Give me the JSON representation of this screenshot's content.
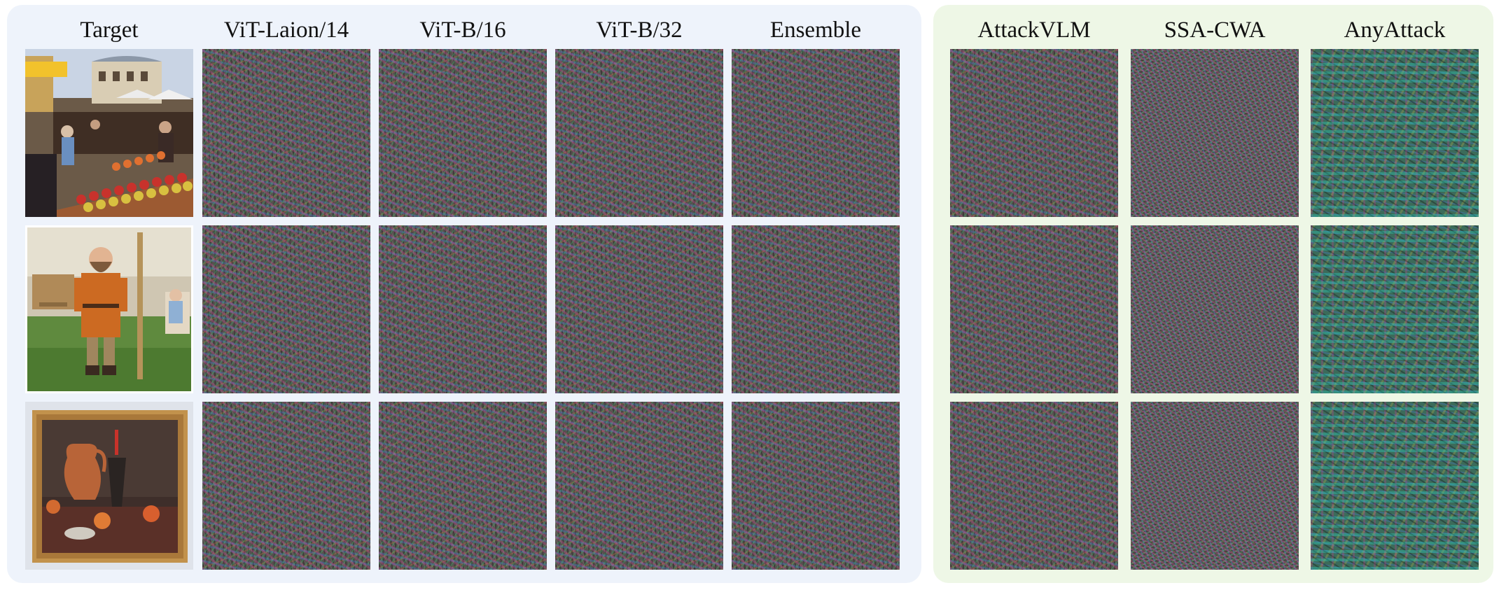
{
  "columns": {
    "target": "Target",
    "vit_laion_14": "ViT-Laion/14",
    "vit_b_16": "ViT-B/16",
    "vit_b_32": "ViT-B/32",
    "ensemble": "Ensemble",
    "attackvlm": "AttackVLM",
    "ssa_cwa": "SSA-CWA",
    "anyattack": "AnyAttack"
  },
  "colors": {
    "left_panel_bg": "#eef3fb",
    "right_panel_bg": "#eef7e6",
    "perturbation_base": "#55524e"
  },
  "tile_pattern": {
    "vit_laion_14": "noise",
    "vit_b_16": "noise",
    "vit_b_32": "noise",
    "ensemble": "noise",
    "attackvlm": "noise",
    "ssa_cwa": "noise-fine",
    "anyattack": "noise-any"
  }
}
